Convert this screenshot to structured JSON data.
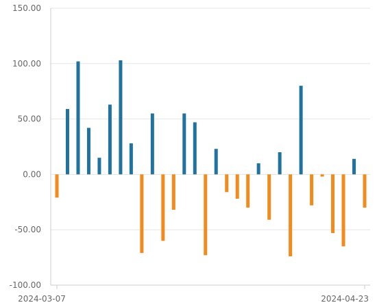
{
  "chart_data": {
    "type": "bar",
    "x_start": "2024-03-07",
    "x_end": "2024-04-23",
    "x_tick_labels": [
      "2024-03-07",
      "2024-04-23"
    ],
    "y_tick_labels": [
      "150.00",
      "100.00",
      "50.00",
      "0.00",
      "-50.00",
      "-100.00"
    ],
    "ylim": [
      -100,
      150
    ],
    "grid": true,
    "positive_color": "#21739f",
    "negative_color": "#f28b1e",
    "values": [
      -21,
      59,
      102,
      42,
      15,
      63,
      103,
      28,
      -71,
      55,
      -60,
      -32,
      55,
      47,
      -73,
      23,
      -16,
      -22,
      -30,
      10,
      -41,
      20,
      -74,
      80,
      -28,
      -2,
      -53,
      -65,
      14,
      -30
    ]
  }
}
